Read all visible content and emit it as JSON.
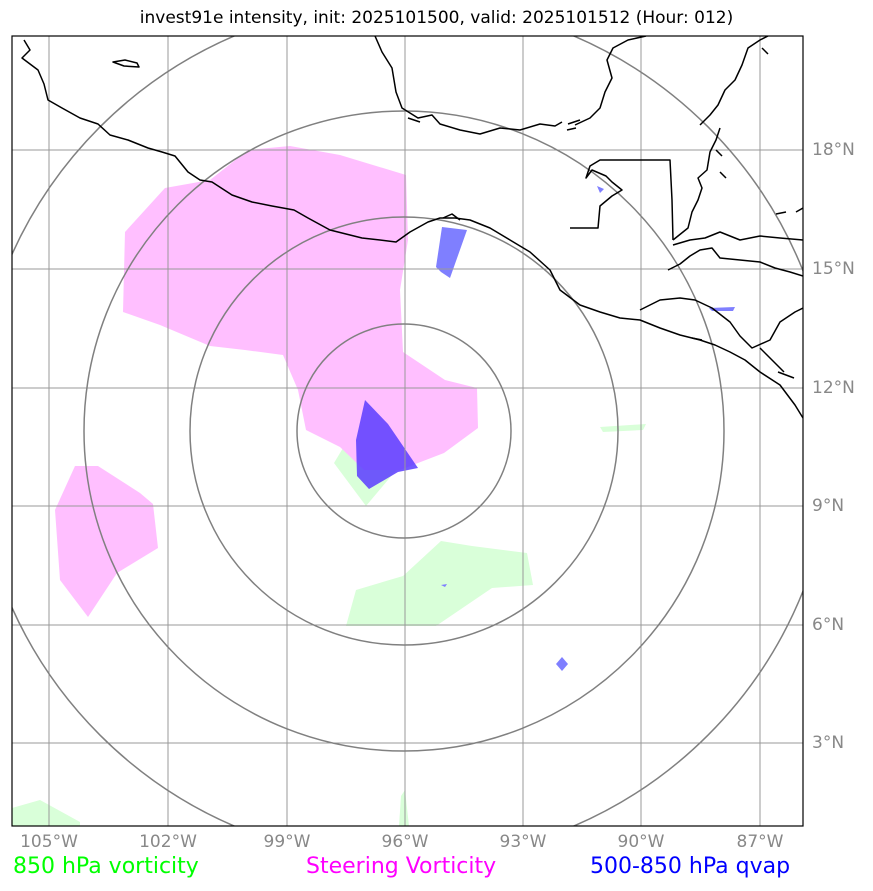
{
  "title": "invest91e intensity, init: 2025101500, valid: 2025101512 (Hour: 012)",
  "lon_labels": [
    "105°W",
    "102°W",
    "99°W",
    "96°W",
    "93°W",
    "90°W",
    "87°W"
  ],
  "lat_labels": [
    "18°N",
    "15°N",
    "12°N",
    "9°N",
    "6°N",
    "3°N"
  ],
  "legend": {
    "vort850": {
      "text": "850 hPa vorticity",
      "color": "#00ff00"
    },
    "steering": {
      "text": "Steering Vorticity",
      "color": "#ff00ff"
    },
    "qvap": {
      "text": "500-850 hPa qvap",
      "color": "#0000ff"
    }
  },
  "colors": {
    "vort850_fill": "#d9ffd9",
    "steering_fill": "#ffbfff",
    "qvap_fill": "#7f7fff",
    "gridlines": "#999999",
    "range_rings": "#808080",
    "coastline": "#000000"
  }
}
